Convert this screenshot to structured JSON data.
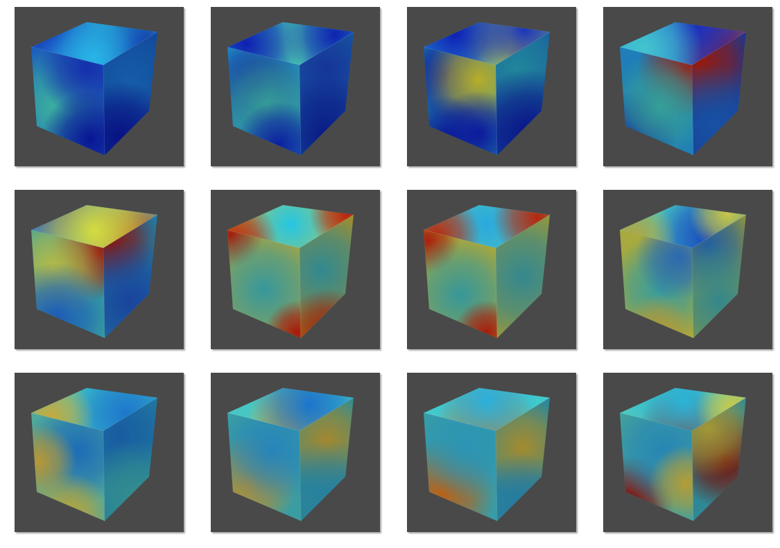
{
  "gallery": {
    "rows": 3,
    "columns": 4,
    "background": "#ffffff",
    "panel_background": "#494949",
    "colormap": "jet",
    "panels": [
      {
        "row": 0,
        "col": 0,
        "subject": "cube-scalar-field",
        "top": [
          [
            0.55,
            0.35,
            0.65,
            "#35d4c9"
          ],
          [
            0.2,
            0.2,
            0.45,
            "#0f1fb4"
          ],
          [
            0.8,
            0.7,
            0.4,
            "#0a14a0"
          ],
          [
            0.5,
            0.8,
            0.45,
            "#28b4e6"
          ]
        ],
        "top_base": "#2aa6e0",
        "left": [
          [
            0.3,
            0.55,
            0.55,
            "#3fb9aa"
          ],
          [
            0.75,
            0.2,
            0.45,
            "#1733b8"
          ],
          [
            0.8,
            0.85,
            0.45,
            "#0a179e"
          ]
        ],
        "left_base": "#1e64c8",
        "right": [
          [
            0.5,
            0.4,
            0.6,
            "#1a6fc6"
          ],
          [
            0.3,
            0.85,
            0.45,
            "#0a169e"
          ]
        ],
        "right_base": "#1747b4"
      },
      {
        "row": 0,
        "col": 1,
        "subject": "cube-scalar-field",
        "top": [
          [
            0.55,
            0.5,
            0.5,
            "#56d7a7"
          ],
          [
            0.15,
            0.5,
            0.45,
            "#0f20b0"
          ],
          [
            0.85,
            0.3,
            0.4,
            "#0e22b0"
          ]
        ],
        "top_base": "#24b2e0",
        "left": [
          [
            0.4,
            0.35,
            0.4,
            "#0e1ea6"
          ],
          [
            0.55,
            0.55,
            0.55,
            "#3ba9a0"
          ],
          [
            0.7,
            0.9,
            0.4,
            "#0e22aa"
          ]
        ],
        "left_base": "#2386c9",
        "right": [
          [
            0.5,
            0.3,
            0.5,
            "#1a3fb6"
          ],
          [
            0.5,
            0.85,
            0.5,
            "#0c1b9e"
          ]
        ],
        "right_base": "#1f7ec4"
      },
      {
        "row": 0,
        "col": 2,
        "subject": "cube-scalar-field",
        "top": [
          [
            0.72,
            0.55,
            0.45,
            "#d9db2b"
          ],
          [
            0.25,
            0.25,
            0.45,
            "#0f1fb4"
          ],
          [
            0.8,
            0.15,
            0.4,
            "#1a33bd"
          ]
        ],
        "top_base": "#2cb3df",
        "left": [
          [
            0.3,
            0.25,
            0.45,
            "#0d1ca6"
          ],
          [
            0.75,
            0.3,
            0.5,
            "#c2b92d"
          ],
          [
            0.3,
            0.85,
            0.4,
            "#0b179e"
          ],
          [
            0.75,
            0.8,
            0.4,
            "#0d1ca6"
          ]
        ],
        "left_base": "#2a9ab8",
        "right": [
          [
            0.4,
            0.3,
            0.55,
            "#28a1b9"
          ],
          [
            0.6,
            0.8,
            0.5,
            "#0c1ba2"
          ]
        ],
        "right_base": "#1c58bc"
      },
      {
        "row": 0,
        "col": 3,
        "subject": "cube-scalar-field",
        "top": [
          [
            0.85,
            0.7,
            0.45,
            "#b4160c"
          ],
          [
            0.6,
            0.1,
            0.5,
            "#1a2ebd"
          ],
          [
            0.2,
            0.6,
            0.45,
            "#43c3ce"
          ]
        ],
        "top_base": "#2ba0dc",
        "left": [
          [
            0.9,
            0.2,
            0.45,
            "#a8170e"
          ],
          [
            0.2,
            0.8,
            0.4,
            "#0e1ea6"
          ],
          [
            0.55,
            0.55,
            0.5,
            "#3aa9a0"
          ]
        ],
        "left_base": "#2186c5",
        "right": [
          [
            0.15,
            0.25,
            0.45,
            "#b4200f"
          ],
          [
            0.4,
            0.75,
            0.5,
            "#1e61c2"
          ]
        ],
        "right_base": "#1a43b2"
      },
      {
        "row": 1,
        "col": 0,
        "subject": "cube-scalar-field",
        "top": [
          [
            0.25,
            0.1,
            0.45,
            "#1522b5"
          ],
          [
            0.8,
            0.85,
            0.4,
            "#b01a0e"
          ],
          [
            0.5,
            0.6,
            0.55,
            "#d4dc40"
          ]
        ],
        "top_base": "#45c4d0",
        "left": [
          [
            0.9,
            0.2,
            0.45,
            "#a3170f"
          ],
          [
            0.3,
            0.35,
            0.5,
            "#c3c84a"
          ],
          [
            0.35,
            0.8,
            0.5,
            "#1f63c2"
          ]
        ],
        "left_base": "#3aaaab",
        "right": [
          [
            0.1,
            0.2,
            0.4,
            "#a4180f"
          ],
          [
            0.5,
            0.7,
            0.5,
            "#1e52ba"
          ]
        ],
        "right_base": "#2a8fc0"
      },
      {
        "row": 1,
        "col": 1,
        "subject": "cube-scalar-field",
        "top": [
          [
            0.5,
            0.45,
            0.45,
            "#25c6e3"
          ],
          [
            0.05,
            0.85,
            0.35,
            "#b8240e"
          ],
          [
            0.95,
            0.2,
            0.3,
            "#b8200e"
          ]
        ],
        "top_base": "#d1c53a",
        "left": [
          [
            0.05,
            0.05,
            0.3,
            "#ad1f0f"
          ],
          [
            0.5,
            0.55,
            0.6,
            "#3aa2a6"
          ],
          [
            0.95,
            0.95,
            0.3,
            "#b21a0c"
          ]
        ],
        "left_base": "#c3b33a",
        "right": [
          [
            0.4,
            0.45,
            0.5,
            "#3aa4ad"
          ],
          [
            0.5,
            0.95,
            0.35,
            "#b82a10"
          ]
        ],
        "right_base": "#c1a938"
      },
      {
        "row": 1,
        "col": 2,
        "subject": "cube-scalar-field",
        "top": [
          [
            0.5,
            0.45,
            0.45,
            "#2aa9dd"
          ],
          [
            0.1,
            0.7,
            0.35,
            "#b8290f"
          ],
          [
            0.9,
            0.3,
            0.35,
            "#b4260e"
          ]
        ],
        "top_base": "#5fcfb2",
        "left": [
          [
            0.05,
            0.1,
            0.3,
            "#b3240e"
          ],
          [
            0.5,
            0.6,
            0.55,
            "#3aa1a3"
          ],
          [
            0.85,
            0.95,
            0.3,
            "#b11d0d"
          ]
        ],
        "left_base": "#b9b33d",
        "right": [
          [
            0.5,
            0.5,
            0.55,
            "#3fa3ab"
          ]
        ],
        "right_base": "#b7b544"
      },
      {
        "row": 1,
        "col": 3,
        "subject": "cube-scalar-field",
        "top": [
          [
            0.7,
            0.75,
            0.45,
            "#1748c0"
          ],
          [
            0.1,
            0.8,
            0.35,
            "#b8a43a"
          ],
          [
            0.85,
            0.2,
            0.3,
            "#c8c645"
          ]
        ],
        "top_base": "#48c7c2",
        "left": [
          [
            0.55,
            0.55,
            0.5,
            "#3ba6a6"
          ],
          [
            0.8,
            0.25,
            0.4,
            "#2d6fbd"
          ],
          [
            0.5,
            0.95,
            0.35,
            "#c0a239"
          ]
        ],
        "left_base": "#b3b443",
        "right": [
          [
            0.3,
            0.25,
            0.4,
            "#286fc0"
          ],
          [
            0.5,
            0.7,
            0.5,
            "#3fa2a6"
          ]
        ],
        "right_base": "#b2b645"
      },
      {
        "row": 2,
        "col": 0,
        "subject": "cube-scalar-field",
        "top": [
          [
            0.75,
            0.6,
            0.45,
            "#1d77cc"
          ],
          [
            0.15,
            0.7,
            0.35,
            "#c9aa3a"
          ]
        ],
        "top_base": "#3cc2c8",
        "left": [
          [
            0.65,
            0.35,
            0.5,
            "#1f74c2"
          ],
          [
            0.1,
            0.45,
            0.35,
            "#c2a03a"
          ],
          [
            0.5,
            0.95,
            0.4,
            "#c7ad3b"
          ]
        ],
        "left_base": "#56b4a5",
        "right": [
          [
            0.3,
            0.3,
            0.45,
            "#1d6fc0"
          ],
          [
            0.6,
            0.8,
            0.45,
            "#3da8a8"
          ]
        ],
        "right_base": "#2a94c0"
      },
      {
        "row": 2,
        "col": 1,
        "subject": "cube-scalar-field",
        "top": [
          [
            0.5,
            0.85,
            0.35,
            "#d9a930"
          ],
          [
            0.65,
            0.4,
            0.45,
            "#1a75cd"
          ]
        ],
        "top_base": "#48c6c4",
        "left": [
          [
            0.3,
            0.65,
            0.45,
            "#c9972f"
          ],
          [
            0.6,
            0.35,
            0.5,
            "#2a8dc6"
          ]
        ],
        "left_base": "#3ea7ad",
        "right": [
          [
            0.5,
            0.35,
            0.4,
            "#c3a337"
          ],
          [
            0.5,
            0.8,
            0.45,
            "#2f98bb"
          ]
        ],
        "right_base": "#3aa8b0"
      },
      {
        "row": 2,
        "col": 2,
        "subject": "cube-scalar-field",
        "top": [
          [
            0.5,
            0.9,
            0.4,
            "#d17d1e"
          ],
          [
            0.5,
            0.3,
            0.4,
            "#2ab0dd"
          ]
        ],
        "top_base": "#42c9cc",
        "left": [
          [
            0.25,
            0.75,
            0.5,
            "#c4681a"
          ],
          [
            0.6,
            0.3,
            0.5,
            "#2f9ec0"
          ]
        ],
        "left_base": "#3ca6b1",
        "right": [
          [
            0.5,
            0.4,
            0.4,
            "#c3a637"
          ],
          [
            0.5,
            0.85,
            0.4,
            "#2d92be"
          ]
        ],
        "right_base": "#37a3b5"
      },
      {
        "row": 2,
        "col": 3,
        "subject": "cube-scalar-field",
        "top": [
          [
            0.5,
            0.95,
            0.35,
            "#9c1c0d"
          ],
          [
            0.5,
            0.3,
            0.45,
            "#2ab4d8"
          ],
          [
            0.9,
            0.5,
            0.3,
            "#cfc945"
          ]
        ],
        "top_base": "#4cc7bf",
        "left": [
          [
            0.15,
            0.8,
            0.4,
            "#8e120c"
          ],
          [
            0.6,
            0.35,
            0.5,
            "#2a8fc0"
          ],
          [
            0.9,
            0.65,
            0.35,
            "#c0a73a"
          ]
        ],
        "left_base": "#46aaa8",
        "right": [
          [
            0.6,
            0.5,
            0.4,
            "#8a140c"
          ],
          [
            0.3,
            0.25,
            0.4,
            "#c1b442"
          ]
        ],
        "right_base": "#39a3b3"
      }
    ]
  }
}
